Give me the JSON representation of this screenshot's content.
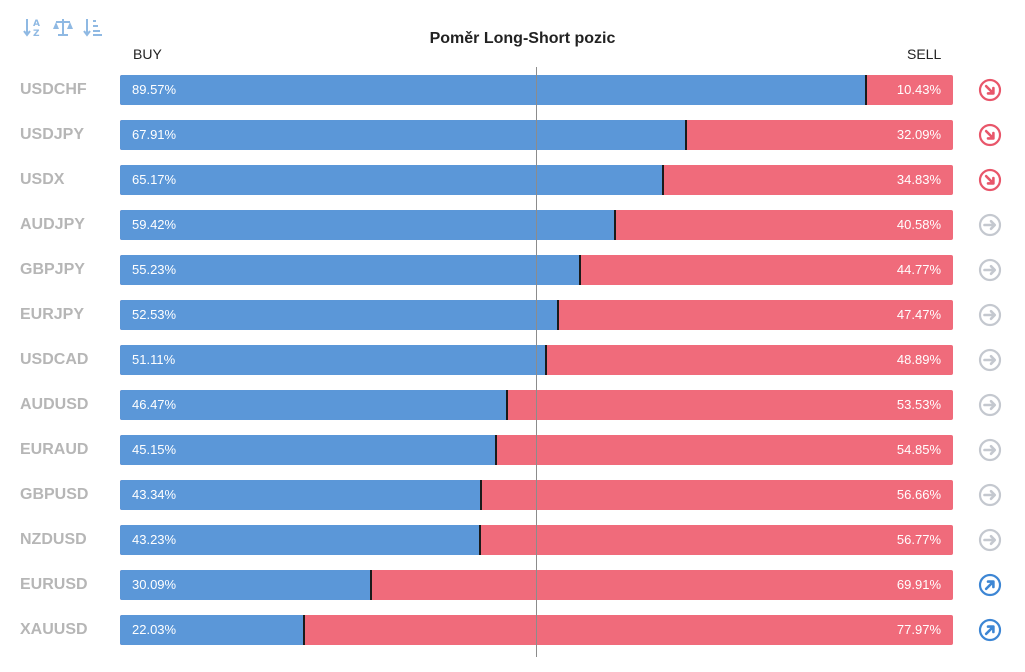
{
  "toolbar": [
    {
      "name": "sort-alpha-icon",
      "color": "#8fb9e3"
    },
    {
      "name": "balance-scale-icon",
      "color": "#8fb9e3"
    },
    {
      "name": "sort-amount-icon",
      "color": "#8fb9e3"
    }
  ],
  "colors": {
    "buy": "#5b97d8",
    "sell": "#f06b7b",
    "symbol_text": "#b6b6b6",
    "trend_down": "#e8566a",
    "trend_neutral": "#c4c8cf",
    "trend_up": "#3d86d4"
  },
  "chart_data": {
    "type": "bar",
    "stacked": true,
    "orientation": "horizontal",
    "title": "Poměr Long-Short pozic",
    "buy_label": "BUY",
    "sell_label": "SELL",
    "xlim": [
      0,
      100
    ],
    "center_line": 50,
    "categories": [
      "USDCHF",
      "USDJPY",
      "USDX",
      "AUDJPY",
      "GBPJPY",
      "EURJPY",
      "USDCAD",
      "AUDUSD",
      "EURAUD",
      "GBPUSD",
      "NZDUSD",
      "EURUSD",
      "XAUUSD"
    ],
    "series": [
      {
        "name": "BUY",
        "values": [
          89.57,
          67.91,
          65.17,
          59.42,
          55.23,
          52.53,
          51.11,
          46.47,
          45.15,
          43.34,
          43.23,
          30.09,
          22.03
        ]
      },
      {
        "name": "SELL",
        "values": [
          10.43,
          32.09,
          34.83,
          40.58,
          44.77,
          47.47,
          48.89,
          53.53,
          54.85,
          56.66,
          56.77,
          69.91,
          77.97
        ]
      }
    ],
    "buy_text": [
      "89.57%",
      "67.91%",
      "65.17%",
      "59.42%",
      "55.23%",
      "52.53%",
      "51.11%",
      "46.47%",
      "45.15%",
      "43.34%",
      "43.23%",
      "30.09%",
      "22.03%"
    ],
    "sell_text": [
      "10.43%",
      "32.09%",
      "34.83%",
      "40.58%",
      "44.77%",
      "47.47%",
      "48.89%",
      "53.53%",
      "54.85%",
      "56.66%",
      "56.77%",
      "69.91%",
      "77.97%"
    ],
    "trend": [
      "down",
      "down",
      "down",
      "neutral",
      "neutral",
      "neutral",
      "neutral",
      "neutral",
      "neutral",
      "neutral",
      "neutral",
      "up",
      "up"
    ]
  }
}
